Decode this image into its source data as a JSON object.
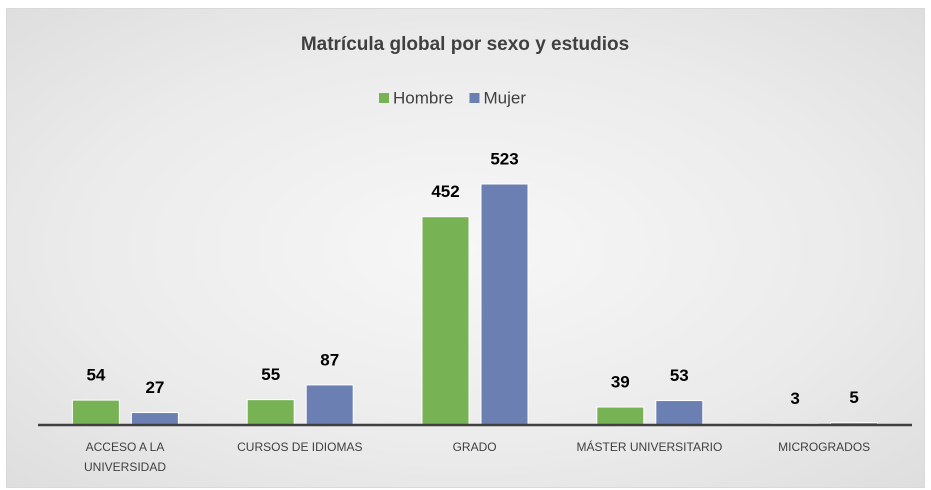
{
  "chart_data": {
    "type": "bar",
    "title": "Matrícula global por sexo y estudios",
    "categories": [
      "ACCESO A LA\nUNIVERSIDAD",
      "CURSOS DE IDIOMAS",
      "GRADO",
      "MÁSTER UNIVERSITARIO",
      "MICROGRADOS"
    ],
    "series": [
      {
        "name": "Hombre",
        "color": "#77b255",
        "values": [
          54,
          55,
          452,
          39,
          3
        ]
      },
      {
        "name": "Mujer",
        "color": "#6b7fb3",
        "values": [
          27,
          87,
          523,
          53,
          5
        ]
      }
    ],
    "legend": "top"
  }
}
